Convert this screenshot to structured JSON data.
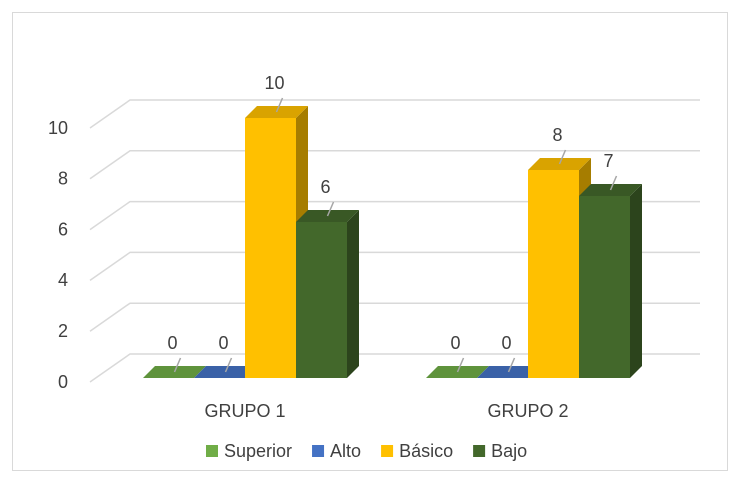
{
  "chart_data": {
    "type": "bar3d",
    "categories": [
      "GRUPO 1",
      "GRUPO 2"
    ],
    "series": [
      {
        "name": "Superior",
        "color": "#70ad47",
        "values": [
          0,
          0
        ]
      },
      {
        "name": "Alto",
        "color": "#4472c4",
        "values": [
          0,
          0
        ]
      },
      {
        "name": "Básico",
        "color": "#ffc000",
        "values": [
          10,
          8
        ]
      },
      {
        "name": "Bajo",
        "color": "#43682b",
        "values": [
          6,
          7
        ]
      }
    ],
    "ylim": [
      0,
      10
    ],
    "yticks": [
      0,
      2,
      4,
      6,
      8,
      10
    ],
    "grid": true,
    "legend": "bottom"
  }
}
